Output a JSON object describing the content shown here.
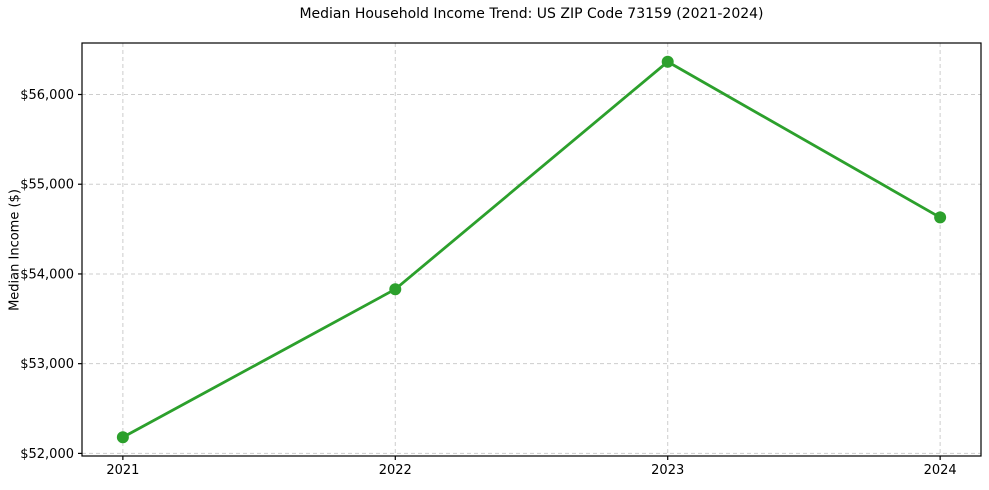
{
  "title": "Median Household Income Trend: US ZIP Code 73159 (2021-2024)",
  "chart_data": {
    "type": "line",
    "title": "Median Household Income Trend: US ZIP Code 73159 (2021-2024)",
    "xlabel": "",
    "ylabel": "Median Income ($)",
    "x": [
      2021,
      2022,
      2023,
      2024
    ],
    "categories": [
      "2021",
      "2022",
      "2023",
      "2024"
    ],
    "series": [
      {
        "name": "Median Household Income",
        "values": [
          52180,
          53830,
          56365,
          54630
        ]
      }
    ],
    "xticks": [
      2021,
      2022,
      2023,
      2024
    ],
    "xtick_labels": [
      "2021",
      "2022",
      "2023",
      "2024"
    ],
    "yticks": [
      52000,
      53000,
      54000,
      55000,
      56000
    ],
    "ytick_labels": [
      "$52,000",
      "$53,000",
      "$54,000",
      "$55,000",
      "$56,000"
    ],
    "xlim": [
      2020.85,
      2024.15
    ],
    "ylim": [
      51971,
      56574
    ],
    "grid": true,
    "grid_style": "dashed",
    "legend": false,
    "line_color": "#2ca02c",
    "marker": "circle",
    "grid_color": "#cdcdcd",
    "spine_color": "#000000",
    "text_color": "#000000",
    "background_color": "#ffffff"
  }
}
